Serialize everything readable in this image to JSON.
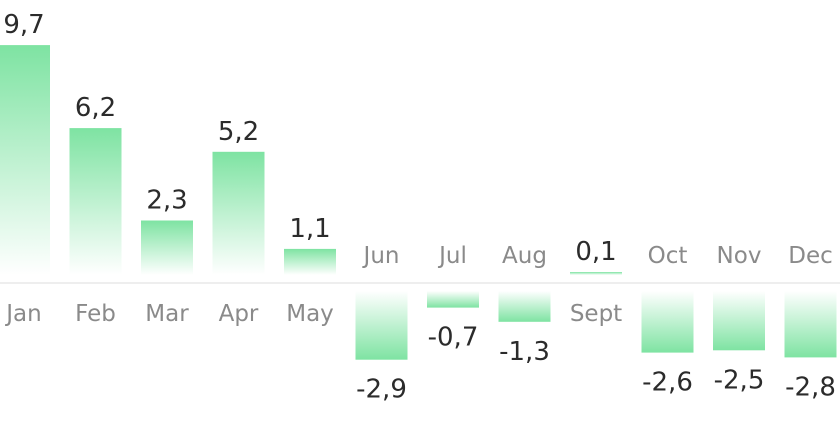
{
  "chart_data": {
    "type": "bar",
    "title": "",
    "xlabel": "",
    "ylabel": "",
    "categories": [
      "Jan",
      "Feb",
      "Mar",
      "Apr",
      "May",
      "Jun",
      "Jul",
      "Aug",
      "Sept",
      "Oct",
      "Nov",
      "Dec"
    ],
    "values": [
      9.7,
      6.2,
      2.3,
      5.2,
      1.1,
      -2.9,
      -0.7,
      -1.3,
      0.1,
      -2.6,
      -2.5,
      -2.8
    ],
    "value_labels": [
      "9,7",
      "6,2",
      "2,3",
      "5,2",
      "1,1",
      "-2,9",
      "-0,7",
      "-1,3",
      "0,1",
      "-2,6",
      "-2,5",
      "-2,8"
    ],
    "ylim": [
      -2.9,
      9.7
    ],
    "grid": false,
    "colors": {
      "bar_strong": "#7ee3a2",
      "bar_fade": "#ffffff",
      "axis_line": "#dddddd",
      "value_text": "#2b2b2b",
      "category_text": "#8a8a8a"
    }
  }
}
